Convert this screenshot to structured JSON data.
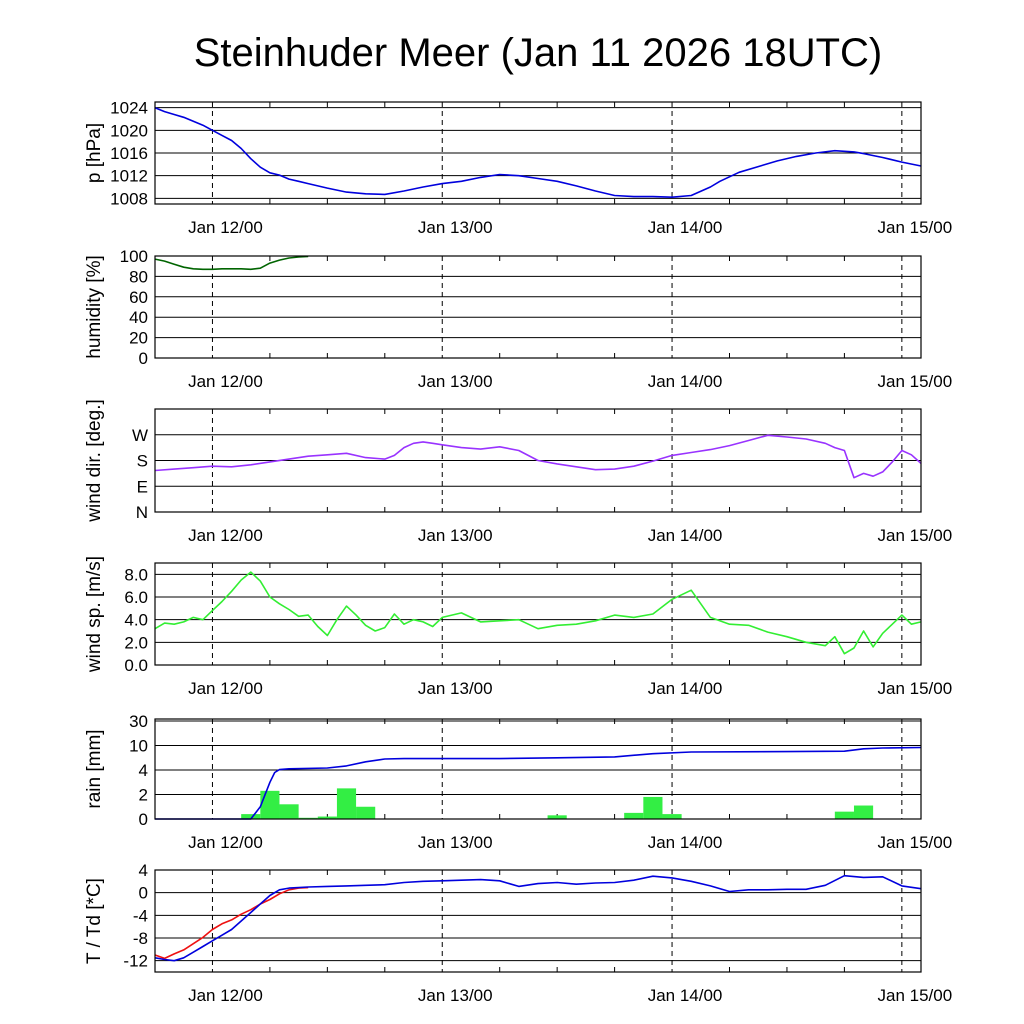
{
  "title": "Steinhuder Meer (Jan 11 2026 18UTC)",
  "x_tick_labels": [
    "Jan 12/00",
    "Jan 13/00",
    "Jan 14/00",
    "Jan 15/00"
  ],
  "chart_data": [
    {
      "type": "line",
      "id": "pressure",
      "ylabel": "p [hPa]",
      "ylim": [
        1007,
        1025
      ],
      "yticks": [
        1008,
        1012,
        1016,
        1020,
        1024
      ],
      "ytick_labels": [
        "1008",
        "1012",
        "1016",
        "1020",
        "1024"
      ],
      "xlim": [
        -6,
        74
      ],
      "x_unit": "hours since Jan 12 00UTC",
      "series": [
        {
          "name": "pressure",
          "color": "#0000dd",
          "x": [
            -6,
            -5,
            -4,
            -3,
            -2,
            -1,
            0,
            1,
            2,
            3,
            4,
            5,
            6,
            7,
            8,
            9,
            10,
            12,
            14,
            16,
            18,
            20,
            22,
            24,
            26,
            28,
            30,
            32,
            34,
            36,
            38,
            40,
            42,
            44,
            46,
            48,
            50,
            52,
            53,
            55,
            57,
            59,
            61,
            63,
            65,
            67,
            68,
            70,
            72,
            74
          ],
          "y": [
            1024,
            1023.3,
            1022.8,
            1022.3,
            1021.6,
            1020.9,
            1020,
            1019.1,
            1018.2,
            1016.8,
            1015,
            1013.5,
            1012.5,
            1012.1,
            1011.4,
            1011,
            1010.6,
            1009.8,
            1009.1,
            1008.8,
            1008.7,
            1009.3,
            1010,
            1010.6,
            1011,
            1011.7,
            1012.2,
            1012,
            1011.5,
            1011,
            1010.2,
            1009.3,
            1008.5,
            1008.3,
            1008.3,
            1008.2,
            1008.5,
            1010,
            1011,
            1012.6,
            1013.6,
            1014.6,
            1015.4,
            1016,
            1016.4,
            1016.2,
            1015.9,
            1015.2,
            1014.4,
            1013.7
          ]
        }
      ]
    },
    {
      "type": "line",
      "id": "humidity",
      "ylabel": "humidity [%]",
      "ylim": [
        0,
        100
      ],
      "yticks": [
        0,
        20,
        40,
        60,
        80,
        100
      ],
      "ytick_labels": [
        "0",
        "20",
        "40",
        "60",
        "80",
        "100"
      ],
      "xlim": [
        -6,
        74
      ],
      "x_unit": "hours since Jan 12 00UTC",
      "series": [
        {
          "name": "relative humidity",
          "color": "#006400",
          "x": [
            -6,
            -5,
            -4,
            -3,
            -2,
            -1,
            0,
            1,
            2,
            3,
            4,
            5,
            6,
            7,
            8,
            9,
            10
          ],
          "y": [
            97,
            95,
            92,
            89,
            87.5,
            87,
            87,
            87.5,
            87.5,
            87.5,
            87,
            88,
            93,
            96,
            98,
            99,
            99.5
          ]
        }
      ]
    },
    {
      "type": "line",
      "id": "wind_direction",
      "ylabel": "wind dir. [deg.]",
      "ylim": [
        0,
        360
      ],
      "yticks": [
        0,
        90,
        180,
        270
      ],
      "ytick_labels": [
        "N",
        "E",
        "S",
        "W"
      ],
      "xlim": [
        -6,
        74
      ],
      "x_unit": "hours since Jan 12 00UTC",
      "series": [
        {
          "name": "wind direction",
          "color": "#9933ff",
          "x": [
            -6,
            -4,
            -2,
            0,
            2,
            4,
            6,
            8,
            10,
            12,
            14,
            16,
            18,
            19,
            20,
            21,
            22,
            23,
            24,
            25,
            26,
            28,
            30,
            32,
            34,
            36,
            38,
            40,
            42,
            44,
            46,
            48,
            50,
            52,
            54,
            56,
            58,
            60,
            62,
            64,
            65,
            66,
            67,
            68,
            69,
            70,
            71,
            72,
            73,
            74
          ],
          "y": [
            145,
            150,
            155,
            160,
            158,
            165,
            175,
            185,
            195,
            200,
            205,
            190,
            185,
            198,
            225,
            240,
            245,
            240,
            235,
            230,
            225,
            220,
            228,
            215,
            180,
            168,
            158,
            148,
            150,
            160,
            178,
            198,
            208,
            218,
            232,
            250,
            268,
            262,
            255,
            240,
            225,
            215,
            120,
            135,
            125,
            140,
            175,
            215,
            200,
            170
          ]
        }
      ]
    },
    {
      "type": "line",
      "id": "wind_speed",
      "ylabel": "wind sp. [m/s]",
      "ylim": [
        0,
        9
      ],
      "yticks": [
        0,
        2,
        4,
        6,
        8
      ],
      "ytick_labels": [
        "0.0",
        "2.0",
        "4.0",
        "6.0",
        "8.0"
      ],
      "xlim": [
        -6,
        74
      ],
      "x_unit": "hours since Jan 12 00UTC",
      "series": [
        {
          "name": "wind speed",
          "color": "#33ee33",
          "x": [
            -6,
            -5,
            -4,
            -3,
            -2,
            -1,
            0,
            1,
            2,
            3,
            4,
            5,
            6,
            7,
            8,
            9,
            10,
            11,
            12,
            13,
            14,
            15,
            16,
            17,
            18,
            19,
            20,
            21,
            22,
            23,
            24,
            26,
            28,
            30,
            32,
            34,
            36,
            38,
            40,
            42,
            44,
            46,
            48,
            50,
            52,
            54,
            56,
            58,
            60,
            62,
            64,
            65,
            66,
            67,
            68,
            69,
            70,
            71,
            72,
            73,
            74
          ],
          "y": [
            3.2,
            3.7,
            3.6,
            3.8,
            4.2,
            4,
            4.8,
            5.6,
            6.5,
            7.5,
            8.2,
            7.4,
            6,
            5.4,
            4.9,
            4.3,
            4.4,
            3.4,
            2.6,
            4,
            5.2,
            4.4,
            3.5,
            3,
            3.3,
            4.5,
            3.6,
            4,
            3.8,
            3.4,
            4.2,
            4.6,
            3.8,
            3.9,
            4,
            3.2,
            3.5,
            3.6,
            3.9,
            4.4,
            4.2,
            4.5,
            5.8,
            6.6,
            4.2,
            3.6,
            3.5,
            2.9,
            2.5,
            2,
            1.7,
            2.5,
            1,
            1.5,
            3,
            1.6,
            2.8,
            3.6,
            4.4,
            3.6,
            3.8
          ]
        }
      ]
    },
    {
      "type": "bar+line",
      "id": "rain",
      "ylabel": "rain [mm]",
      "ylim": [
        0,
        32
      ],
      "yticks": [
        0,
        2,
        4,
        10,
        30
      ],
      "ytick_labels": [
        "0",
        "2",
        "4",
        "10",
        "30"
      ],
      "y_scale": "compressed (0-2-4-10-30 equally spaced bands)",
      "xlim": [
        -6,
        74
      ],
      "x_unit": "hours since Jan 12 00UTC",
      "bars": {
        "name": "rain rate",
        "color": "#33ee44",
        "width_hours": 2,
        "x": [
          4,
          6,
          8,
          10,
          12,
          14,
          16,
          18,
          36,
          44,
          46,
          48,
          66,
          68
        ],
        "y": [
          0.4,
          2.3,
          1.2,
          0.1,
          0.2,
          2.5,
          1,
          0.02,
          0.3,
          0.5,
          1.8,
          0.4,
          0.6,
          1.1
        ]
      },
      "series": [
        {
          "name": "accumulated rain",
          "color": "#0000dd",
          "x": [
            -6,
            4,
            5,
            6,
            6.5,
            7,
            8,
            12,
            14,
            16,
            18,
            20,
            24,
            30,
            36,
            42,
            46,
            50,
            60,
            66,
            68,
            70,
            74
          ],
          "y": [
            0,
            0,
            1,
            3,
            3.8,
            4.1,
            4.3,
            4.5,
            5,
            6,
            6.7,
            6.8,
            6.8,
            6.8,
            7,
            7.2,
            8,
            8.4,
            8.5,
            8.6,
            9.2,
            9.4,
            9.5
          ]
        }
      ]
    },
    {
      "type": "line",
      "id": "temperature",
      "ylabel": "T / Td [*C]",
      "ylim": [
        -14,
        4
      ],
      "yticks": [
        -12,
        -8,
        -4,
        0,
        4
      ],
      "ytick_labels": [
        "-12",
        "-8",
        "-4",
        "0",
        "4"
      ],
      "xlim": [
        -6,
        74
      ],
      "x_unit": "hours since Jan 12 00UTC",
      "series": [
        {
          "name": "temperature",
          "color": "#ee1111",
          "x": [
            -6,
            -5,
            -4,
            -3,
            -2,
            -1,
            0,
            1,
            2,
            3,
            4,
            5,
            6,
            7,
            8,
            9,
            10
          ],
          "y": [
            -11,
            -11.6,
            -10.8,
            -10.1,
            -9,
            -7.9,
            -6.5,
            -5.5,
            -4.8,
            -3.8,
            -3,
            -2,
            -1.2,
            -0.2,
            0.5,
            0.8,
            0.9
          ]
        },
        {
          "name": "dew point",
          "color": "#0000dd",
          "x": [
            -6,
            -5,
            -4,
            -3,
            -2,
            -1,
            0,
            1,
            2,
            3,
            4,
            5,
            6,
            7,
            8,
            10,
            12,
            14,
            16,
            18,
            20,
            22,
            24,
            26,
            28,
            30,
            32,
            34,
            36,
            38,
            40,
            42,
            44,
            46,
            48,
            50,
            52,
            54,
            56,
            58,
            60,
            62,
            64,
            66,
            68,
            70,
            72,
            74
          ],
          "y": [
            -11.5,
            -11.8,
            -12,
            -11.5,
            -10.5,
            -9.5,
            -8.5,
            -7.5,
            -6.5,
            -5,
            -3.5,
            -2,
            -0.5,
            0.5,
            0.8,
            1,
            1.1,
            1.2,
            1.3,
            1.4,
            1.8,
            2,
            2.1,
            2.2,
            2.3,
            2.1,
            1.1,
            1.6,
            1.8,
            1.5,
            1.7,
            1.8,
            2.2,
            2.9,
            2.6,
            2,
            1.2,
            0.2,
            0.5,
            0.5,
            0.6,
            0.6,
            1.3,
            3,
            2.7,
            2.8,
            1.2,
            0.7
          ]
        }
      ]
    }
  ]
}
